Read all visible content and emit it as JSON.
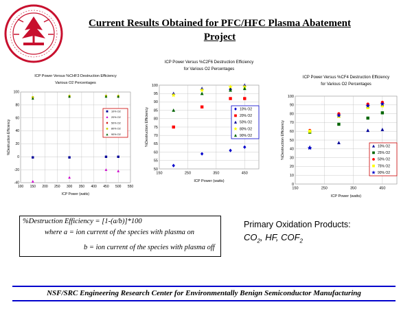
{
  "slide": {
    "title_line1": "Current Results Obtained for PFC/HFC Plasma Abatement",
    "title_line2": "Project",
    "formula_line1": "%Destruction Efficiency = [1-(a/b)]*100",
    "formula_line2": "where a = ion current of the species with plasma on",
    "formula_line3": "b = ion current of the species with plasma off",
    "products_title": "Primary Oxidation Products:",
    "products_co2": "CO",
    "products_hf": "HF, COF",
    "footer": "NSF/SRC Engineering Research Center for Environmentally Benign Semiconductor Manufacturing",
    "logo_icon": "stanford-seal-icon"
  },
  "colors": {
    "seal": "#c8102e",
    "footer_rule": "#0000cc",
    "legend_box_border": "#cc0000"
  },
  "chart_data": [
    {
      "type": "scatter",
      "title": "ICP Power Versus %CHF3 Destruction Efficiency",
      "subtitle": "Various O2 Percentages",
      "xlabel": "ICP Power (watts)",
      "ylabel": "%Destruction Efficiency",
      "xlim": [
        100,
        550
      ],
      "ylim": [
        -40,
        100
      ],
      "xticks": [
        "100",
        "150",
        "200",
        "250",
        "300",
        "350",
        "400",
        "450",
        "500",
        "550"
      ],
      "yticks": [
        "-40",
        "-20",
        "0",
        "20",
        "40",
        "60",
        "80",
        "100"
      ],
      "grid": true,
      "legend_position": "right",
      "legend_border": "red",
      "series": [
        {
          "name": "10% O2",
          "color": "#000099",
          "marker": "square",
          "x": [
            150,
            300,
            450,
            500
          ],
          "y": [
            -1,
            -1,
            0,
            0
          ]
        },
        {
          "name": "20% O2",
          "color": "#cc00cc",
          "marker": "triangle",
          "x": [
            150,
            300,
            450,
            500
          ],
          "y": [
            -38,
            -32,
            -20,
            -22
          ]
        },
        {
          "name": "50% O2",
          "color": "#cc0000",
          "marker": "diamond",
          "x": [
            150,
            300,
            450,
            500
          ],
          "y": [
            91,
            93,
            94,
            93
          ]
        },
        {
          "name": "80% O2",
          "color": "#cccc00",
          "marker": "circle",
          "x": [
            150,
            300,
            450,
            500
          ],
          "y": [
            92,
            94,
            94,
            94
          ]
        },
        {
          "name": "90% O2",
          "color": "#006600",
          "marker": "triangle",
          "x": [
            150,
            300,
            450,
            500
          ],
          "y": [
            90,
            93,
            93,
            93
          ]
        }
      ]
    },
    {
      "type": "scatter",
      "title": "ICP Power Versus %C2F6 Destruction Efficiency",
      "subtitle": "for Various O2 Percentages",
      "xlabel": "ICP Power (watts)",
      "ylabel": "%Destruction Efficiency",
      "xlim": [
        150,
        500
      ],
      "ylim": [
        50,
        100
      ],
      "xticks": [
        "150",
        "250",
        "350",
        "450"
      ],
      "xtick_values": [
        150,
        250,
        350,
        450
      ],
      "yticks": [
        "50",
        "55",
        "60",
        "65",
        "70",
        "75",
        "80",
        "85",
        "90",
        "95",
        "100"
      ],
      "grid": true,
      "legend_position": "right",
      "legend_border": "blue",
      "series": [
        {
          "name": "10% O2",
          "color": "#0000cc",
          "marker": "diamond",
          "x": [
            200,
            300,
            400,
            450
          ],
          "y": [
            52,
            59,
            61,
            63
          ]
        },
        {
          "name": "20% O2",
          "color": "#ff0000",
          "marker": "square",
          "x": [
            200,
            300,
            400,
            450
          ],
          "y": [
            75,
            87,
            92,
            92
          ]
        },
        {
          "name": "50% O2",
          "color": "#000099",
          "marker": "triangle",
          "x": [
            200,
            300,
            400,
            450
          ],
          "y": [
            95,
            98,
            98,
            100
          ]
        },
        {
          "name": "80% O2",
          "color": "#ffff00",
          "marker": "star",
          "x": [
            200,
            300,
            400,
            450
          ],
          "y": [
            94,
            97,
            99,
            99
          ]
        },
        {
          "name": "90% O2",
          "color": "#006600",
          "marker": "triangle",
          "x": [
            200,
            300,
            400,
            450
          ],
          "y": [
            85,
            95,
            97,
            98
          ]
        }
      ]
    },
    {
      "type": "scatter",
      "title": "ICP Power Versus %CF4 Destruction Efficiency",
      "subtitle": "for Various O2 Percentages",
      "xlabel": "ICP Power (watts)",
      "ylabel": "%Destruction Efficiency",
      "xlim": [
        150,
        500
      ],
      "ylim": [
        0,
        100
      ],
      "xticks": [
        "150",
        "250",
        "350",
        "450"
      ],
      "xtick_values": [
        150,
        250,
        350,
        450
      ],
      "yticks": [
        "0",
        "10",
        "20",
        "30",
        "40",
        "50",
        "60",
        "70",
        "80",
        "90",
        "100"
      ],
      "grid": true,
      "legend_position": "right",
      "legend_border": "red",
      "series": [
        {
          "name": "10% O2",
          "color": "#000099",
          "marker": "triangle",
          "x": [
            200,
            300,
            400,
            450
          ],
          "y": [
            42,
            47,
            61,
            62
          ]
        },
        {
          "name": "25% O2",
          "color": "#006600",
          "marker": "square",
          "x": [
            200,
            300,
            400,
            450
          ],
          "y": [
            59,
            68,
            75,
            81
          ]
        },
        {
          "name": "50% O2",
          "color": "#ff0000",
          "marker": "circle",
          "x": [
            200,
            300,
            400,
            450
          ],
          "y": [
            61,
            80,
            91,
            93
          ]
        },
        {
          "name": "75% O2",
          "color": "#ffff00",
          "marker": "square",
          "x": [
            200,
            300,
            400,
            450
          ],
          "y": [
            60,
            77,
            87,
            89
          ]
        },
        {
          "name": "90% O2",
          "color": "#0000cc",
          "marker": "star",
          "x": [
            200,
            300,
            400,
            450
          ],
          "y": [
            41,
            78,
            89,
            91
          ]
        }
      ]
    }
  ]
}
